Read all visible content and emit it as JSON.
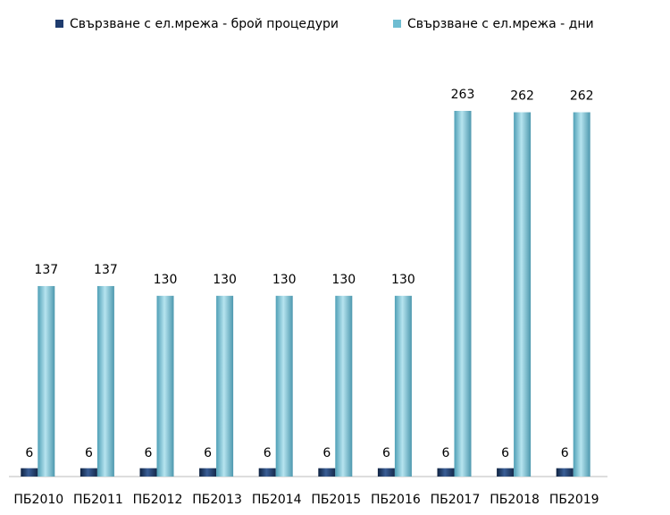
{
  "chart_data": {
    "type": "bar",
    "categories": [
      "ПБ2010",
      "ПБ2011",
      "ПБ2012",
      "ПБ2013",
      "ПБ2014",
      "ПБ2015",
      "ПБ2016",
      "ПБ2017",
      "ПБ2018",
      "ПБ2019"
    ],
    "series": [
      {
        "name": "Свързване с ел.мрежа - брой процедури",
        "color": "#1f3c6e",
        "values": [
          6,
          6,
          6,
          6,
          6,
          6,
          6,
          6,
          6,
          6
        ]
      },
      {
        "name": "Свързване с ел.мрежа - дни",
        "color": "#6fbdd2",
        "values": [
          137,
          137,
          130,
          130,
          130,
          130,
          130,
          263,
          262,
          262
        ]
      }
    ]
  }
}
